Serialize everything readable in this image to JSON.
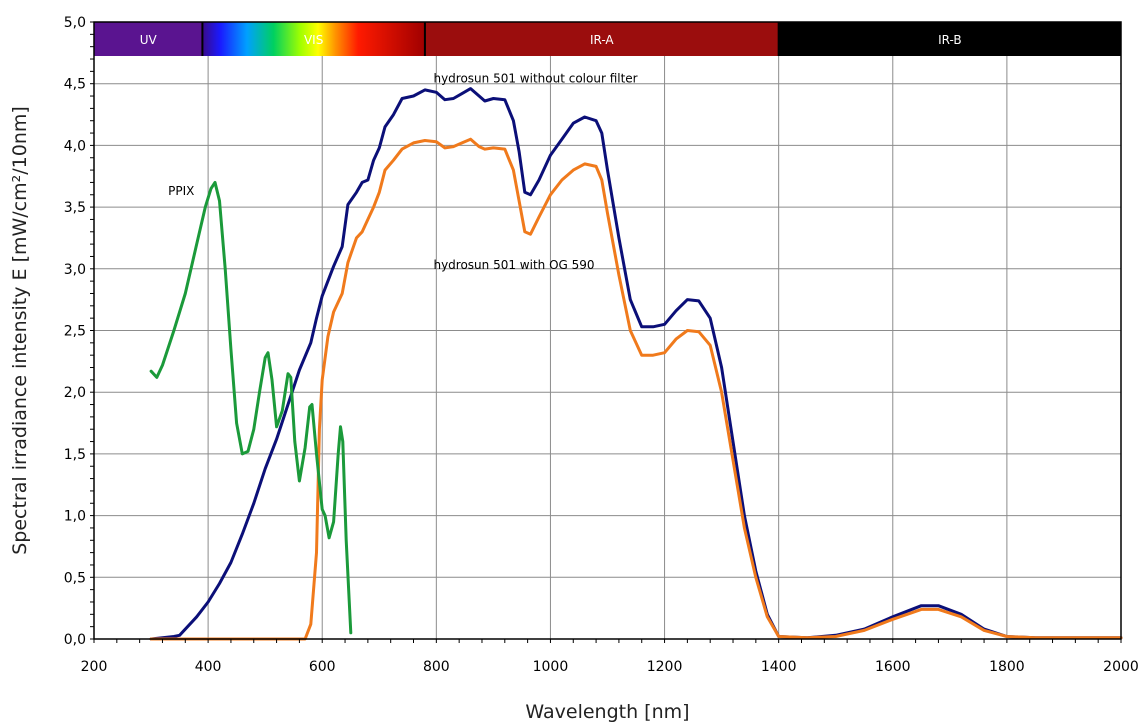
{
  "chart_data": {
    "type": "line",
    "xlabel": "Wavelength [nm]",
    "ylabel": "Spectral irradiance intensity E [mW/cm²/10nm]",
    "xlim": [
      200,
      2000
    ],
    "ylim": [
      0,
      5
    ],
    "x_ticks": [
      200,
      400,
      600,
      800,
      1000,
      1200,
      1400,
      1600,
      1800,
      2000
    ],
    "y_ticks": [
      "0,0",
      "0,5",
      "1,0",
      "1,5",
      "2,0",
      "2,5",
      "3,0",
      "3,5",
      "4,0",
      "4,5",
      "5,0"
    ],
    "grid": true,
    "bands": [
      {
        "label": "UV",
        "from": 200,
        "to": 390,
        "color": "#5a1490"
      },
      {
        "label": "VIS",
        "from": 390,
        "to": 780,
        "color": "spectrum"
      },
      {
        "label": "IR-A",
        "from": 780,
        "to": 1400,
        "color": "#9b0d0d"
      },
      {
        "label": "IR-B",
        "from": 1400,
        "to": 2000,
        "color": "#000000"
      }
    ],
    "annotations": [
      {
        "text": "hydrosun 501 without colour filter",
        "x": 795,
        "y": 4.51
      },
      {
        "text": "hydrosun 501 with OG 590",
        "x": 795,
        "y": 3.0
      },
      {
        "text": "PPIX",
        "x": 330,
        "y": 3.6
      }
    ],
    "series": [
      {
        "name": "hydrosun 501 without colour filter",
        "color": "#0b0f78",
        "points": [
          [
            300,
            0
          ],
          [
            340,
            0.02
          ],
          [
            350,
            0.03
          ],
          [
            380,
            0.18
          ],
          [
            400,
            0.3
          ],
          [
            420,
            0.45
          ],
          [
            440,
            0.62
          ],
          [
            460,
            0.85
          ],
          [
            480,
            1.1
          ],
          [
            500,
            1.38
          ],
          [
            520,
            1.62
          ],
          [
            540,
            1.9
          ],
          [
            560,
            2.18
          ],
          [
            580,
            2.4
          ],
          [
            590,
            2.6
          ],
          [
            600,
            2.78
          ],
          [
            620,
            3.02
          ],
          [
            635,
            3.18
          ],
          [
            645,
            3.52
          ],
          [
            660,
            3.62
          ],
          [
            670,
            3.7
          ],
          [
            680,
            3.72
          ],
          [
            690,
            3.88
          ],
          [
            700,
            3.98
          ],
          [
            710,
            4.15
          ],
          [
            725,
            4.25
          ],
          [
            740,
            4.38
          ],
          [
            760,
            4.4
          ],
          [
            780,
            4.45
          ],
          [
            800,
            4.43
          ],
          [
            815,
            4.37
          ],
          [
            830,
            4.38
          ],
          [
            845,
            4.42
          ],
          [
            860,
            4.46
          ],
          [
            875,
            4.4
          ],
          [
            885,
            4.36
          ],
          [
            900,
            4.38
          ],
          [
            920,
            4.37
          ],
          [
            935,
            4.2
          ],
          [
            945,
            3.95
          ],
          [
            955,
            3.62
          ],
          [
            965,
            3.6
          ],
          [
            980,
            3.72
          ],
          [
            1000,
            3.92
          ],
          [
            1020,
            4.05
          ],
          [
            1040,
            4.18
          ],
          [
            1060,
            4.23
          ],
          [
            1080,
            4.2
          ],
          [
            1090,
            4.1
          ],
          [
            1100,
            3.8
          ],
          [
            1120,
            3.25
          ],
          [
            1140,
            2.75
          ],
          [
            1160,
            2.53
          ],
          [
            1180,
            2.53
          ],
          [
            1200,
            2.55
          ],
          [
            1220,
            2.66
          ],
          [
            1240,
            2.75
          ],
          [
            1260,
            2.74
          ],
          [
            1280,
            2.6
          ],
          [
            1300,
            2.2
          ],
          [
            1320,
            1.6
          ],
          [
            1340,
            1.0
          ],
          [
            1360,
            0.55
          ],
          [
            1380,
            0.2
          ],
          [
            1400,
            0.02
          ],
          [
            1450,
            0.01
          ],
          [
            1500,
            0.03
          ],
          [
            1550,
            0.08
          ],
          [
            1600,
            0.18
          ],
          [
            1650,
            0.27
          ],
          [
            1680,
            0.27
          ],
          [
            1720,
            0.2
          ],
          [
            1760,
            0.08
          ],
          [
            1800,
            0.02
          ],
          [
            1850,
            0.01
          ],
          [
            2000,
            0.01
          ]
        ]
      },
      {
        "name": "hydrosun 501 with OG 590",
        "color": "#f07a1c",
        "points": [
          [
            300,
            0
          ],
          [
            400,
            0
          ],
          [
            500,
            0
          ],
          [
            570,
            0
          ],
          [
            580,
            0.12
          ],
          [
            590,
            0.7
          ],
          [
            595,
            1.7
          ],
          [
            600,
            2.1
          ],
          [
            610,
            2.45
          ],
          [
            620,
            2.65
          ],
          [
            635,
            2.8
          ],
          [
            645,
            3.05
          ],
          [
            660,
            3.25
          ],
          [
            670,
            3.3
          ],
          [
            680,
            3.4
          ],
          [
            690,
            3.5
          ],
          [
            700,
            3.62
          ],
          [
            710,
            3.8
          ],
          [
            725,
            3.88
          ],
          [
            740,
            3.97
          ],
          [
            760,
            4.02
          ],
          [
            780,
            4.04
          ],
          [
            800,
            4.03
          ],
          [
            815,
            3.98
          ],
          [
            830,
            3.99
          ],
          [
            845,
            4.02
          ],
          [
            860,
            4.05
          ],
          [
            875,
            3.99
          ],
          [
            885,
            3.97
          ],
          [
            900,
            3.98
          ],
          [
            920,
            3.97
          ],
          [
            935,
            3.8
          ],
          [
            945,
            3.55
          ],
          [
            955,
            3.3
          ],
          [
            965,
            3.28
          ],
          [
            980,
            3.42
          ],
          [
            1000,
            3.6
          ],
          [
            1020,
            3.72
          ],
          [
            1040,
            3.8
          ],
          [
            1060,
            3.85
          ],
          [
            1080,
            3.83
          ],
          [
            1090,
            3.72
          ],
          [
            1100,
            3.45
          ],
          [
            1120,
            2.95
          ],
          [
            1140,
            2.5
          ],
          [
            1160,
            2.3
          ],
          [
            1180,
            2.3
          ],
          [
            1200,
            2.32
          ],
          [
            1220,
            2.43
          ],
          [
            1240,
            2.5
          ],
          [
            1260,
            2.49
          ],
          [
            1280,
            2.38
          ],
          [
            1300,
            2.0
          ],
          [
            1320,
            1.45
          ],
          [
            1340,
            0.9
          ],
          [
            1360,
            0.5
          ],
          [
            1380,
            0.18
          ],
          [
            1400,
            0.02
          ],
          [
            1450,
            0.01
          ],
          [
            1500,
            0.02
          ],
          [
            1550,
            0.07
          ],
          [
            1600,
            0.16
          ],
          [
            1650,
            0.24
          ],
          [
            1680,
            0.24
          ],
          [
            1720,
            0.18
          ],
          [
            1760,
            0.07
          ],
          [
            1800,
            0.02
          ],
          [
            1850,
            0.01
          ],
          [
            2000,
            0.01
          ]
        ]
      },
      {
        "name": "PPIX",
        "color": "#1b9a3a",
        "points": [
          [
            300,
            2.17
          ],
          [
            310,
            2.12
          ],
          [
            320,
            2.22
          ],
          [
            340,
            2.5
          ],
          [
            360,
            2.8
          ],
          [
            380,
            3.2
          ],
          [
            395,
            3.5
          ],
          [
            405,
            3.65
          ],
          [
            412,
            3.7
          ],
          [
            420,
            3.55
          ],
          [
            430,
            3.0
          ],
          [
            440,
            2.35
          ],
          [
            450,
            1.75
          ],
          [
            460,
            1.5
          ],
          [
            470,
            1.52
          ],
          [
            480,
            1.7
          ],
          [
            490,
            2.0
          ],
          [
            500,
            2.28
          ],
          [
            505,
            2.32
          ],
          [
            512,
            2.1
          ],
          [
            520,
            1.72
          ],
          [
            530,
            1.85
          ],
          [
            540,
            2.15
          ],
          [
            545,
            2.12
          ],
          [
            552,
            1.6
          ],
          [
            560,
            1.28
          ],
          [
            570,
            1.55
          ],
          [
            578,
            1.88
          ],
          [
            582,
            1.9
          ],
          [
            590,
            1.5
          ],
          [
            600,
            1.05
          ],
          [
            605,
            1.0
          ],
          [
            612,
            0.82
          ],
          [
            620,
            0.95
          ],
          [
            628,
            1.5
          ],
          [
            632,
            1.72
          ],
          [
            636,
            1.6
          ],
          [
            642,
            0.8
          ],
          [
            650,
            0.05
          ]
        ]
      }
    ]
  }
}
